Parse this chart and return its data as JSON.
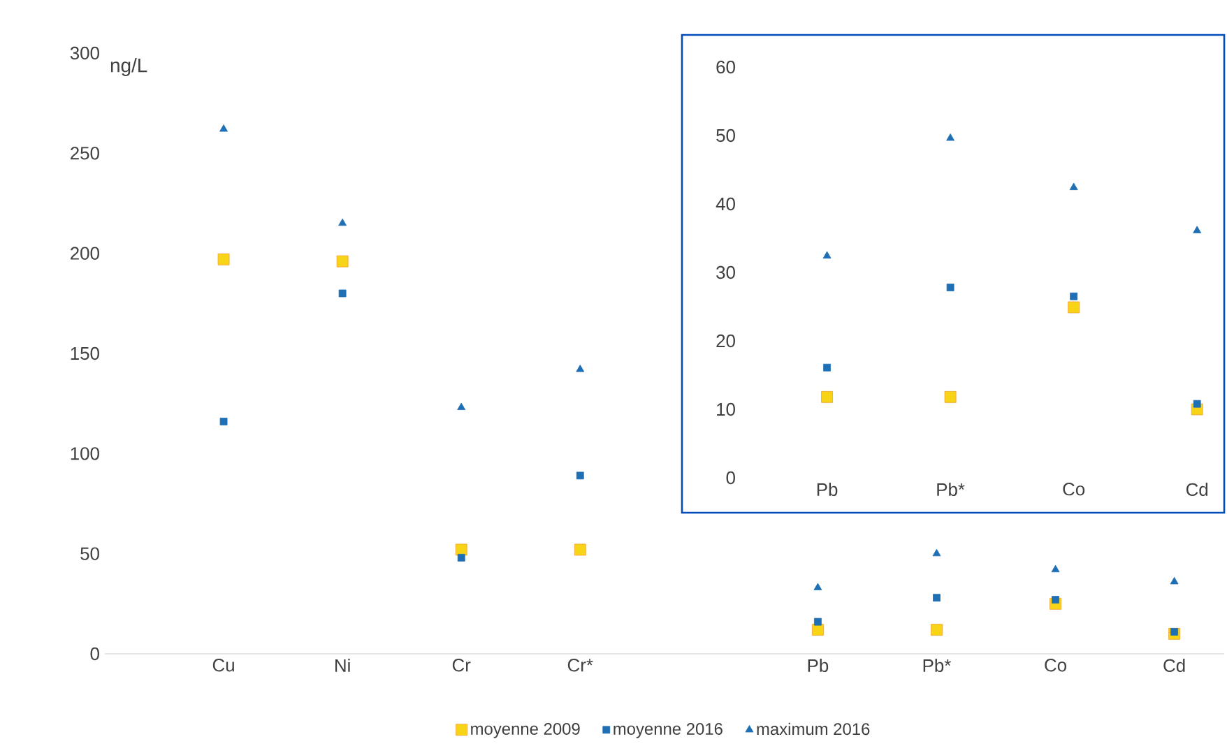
{
  "chart_data": [
    {
      "type": "scatter",
      "ylabel": "ng/L",
      "categories": [
        "Cu",
        "Ni",
        "Cr",
        "Cr*",
        null,
        "Pb",
        "Pb*",
        "Co",
        "Cd"
      ],
      "ylim": [
        0,
        300
      ],
      "yticks": [
        0,
        50,
        100,
        150,
        200,
        250,
        300
      ],
      "grid": false,
      "legend": "bottom",
      "series": [
        {
          "name": "moyenne 2009",
          "color": "#f0a030",
          "marker": "square",
          "values": [
            197,
            196,
            52,
            52,
            null,
            12,
            12,
            25,
            10
          ]
        },
        {
          "name": "moyenne 2016",
          "color": "#1f6fb5",
          "marker": "square",
          "values": [
            116,
            180,
            48,
            89,
            null,
            16,
            28,
            27,
            11
          ]
        },
        {
          "name": "maximum 2016",
          "color": "#1f6fb5",
          "marker": "triangle",
          "values": [
            262,
            215,
            123,
            142,
            null,
            33,
            50,
            42,
            36
          ]
        }
      ]
    },
    {
      "type": "scatter",
      "categories": [
        "Pb",
        "Pb*",
        "Co",
        "Cd"
      ],
      "ylim": [
        0,
        60
      ],
      "yticks": [
        0,
        10,
        20,
        30,
        40,
        50,
        60
      ],
      "grid": false,
      "series": [
        {
          "color": "#f0a030",
          "marker": "square",
          "values": [
            11.8,
            11.8,
            24.9,
            10
          ]
        },
        {
          "color": "#1f6fb5",
          "marker": "square",
          "values": [
            16.1,
            27.8,
            26.5,
            10.8
          ]
        },
        {
          "color": "#1f6fb5",
          "marker": "triangle",
          "values": [
            32.4,
            49.6,
            42.4,
            36.1
          ]
        }
      ]
    }
  ]
}
